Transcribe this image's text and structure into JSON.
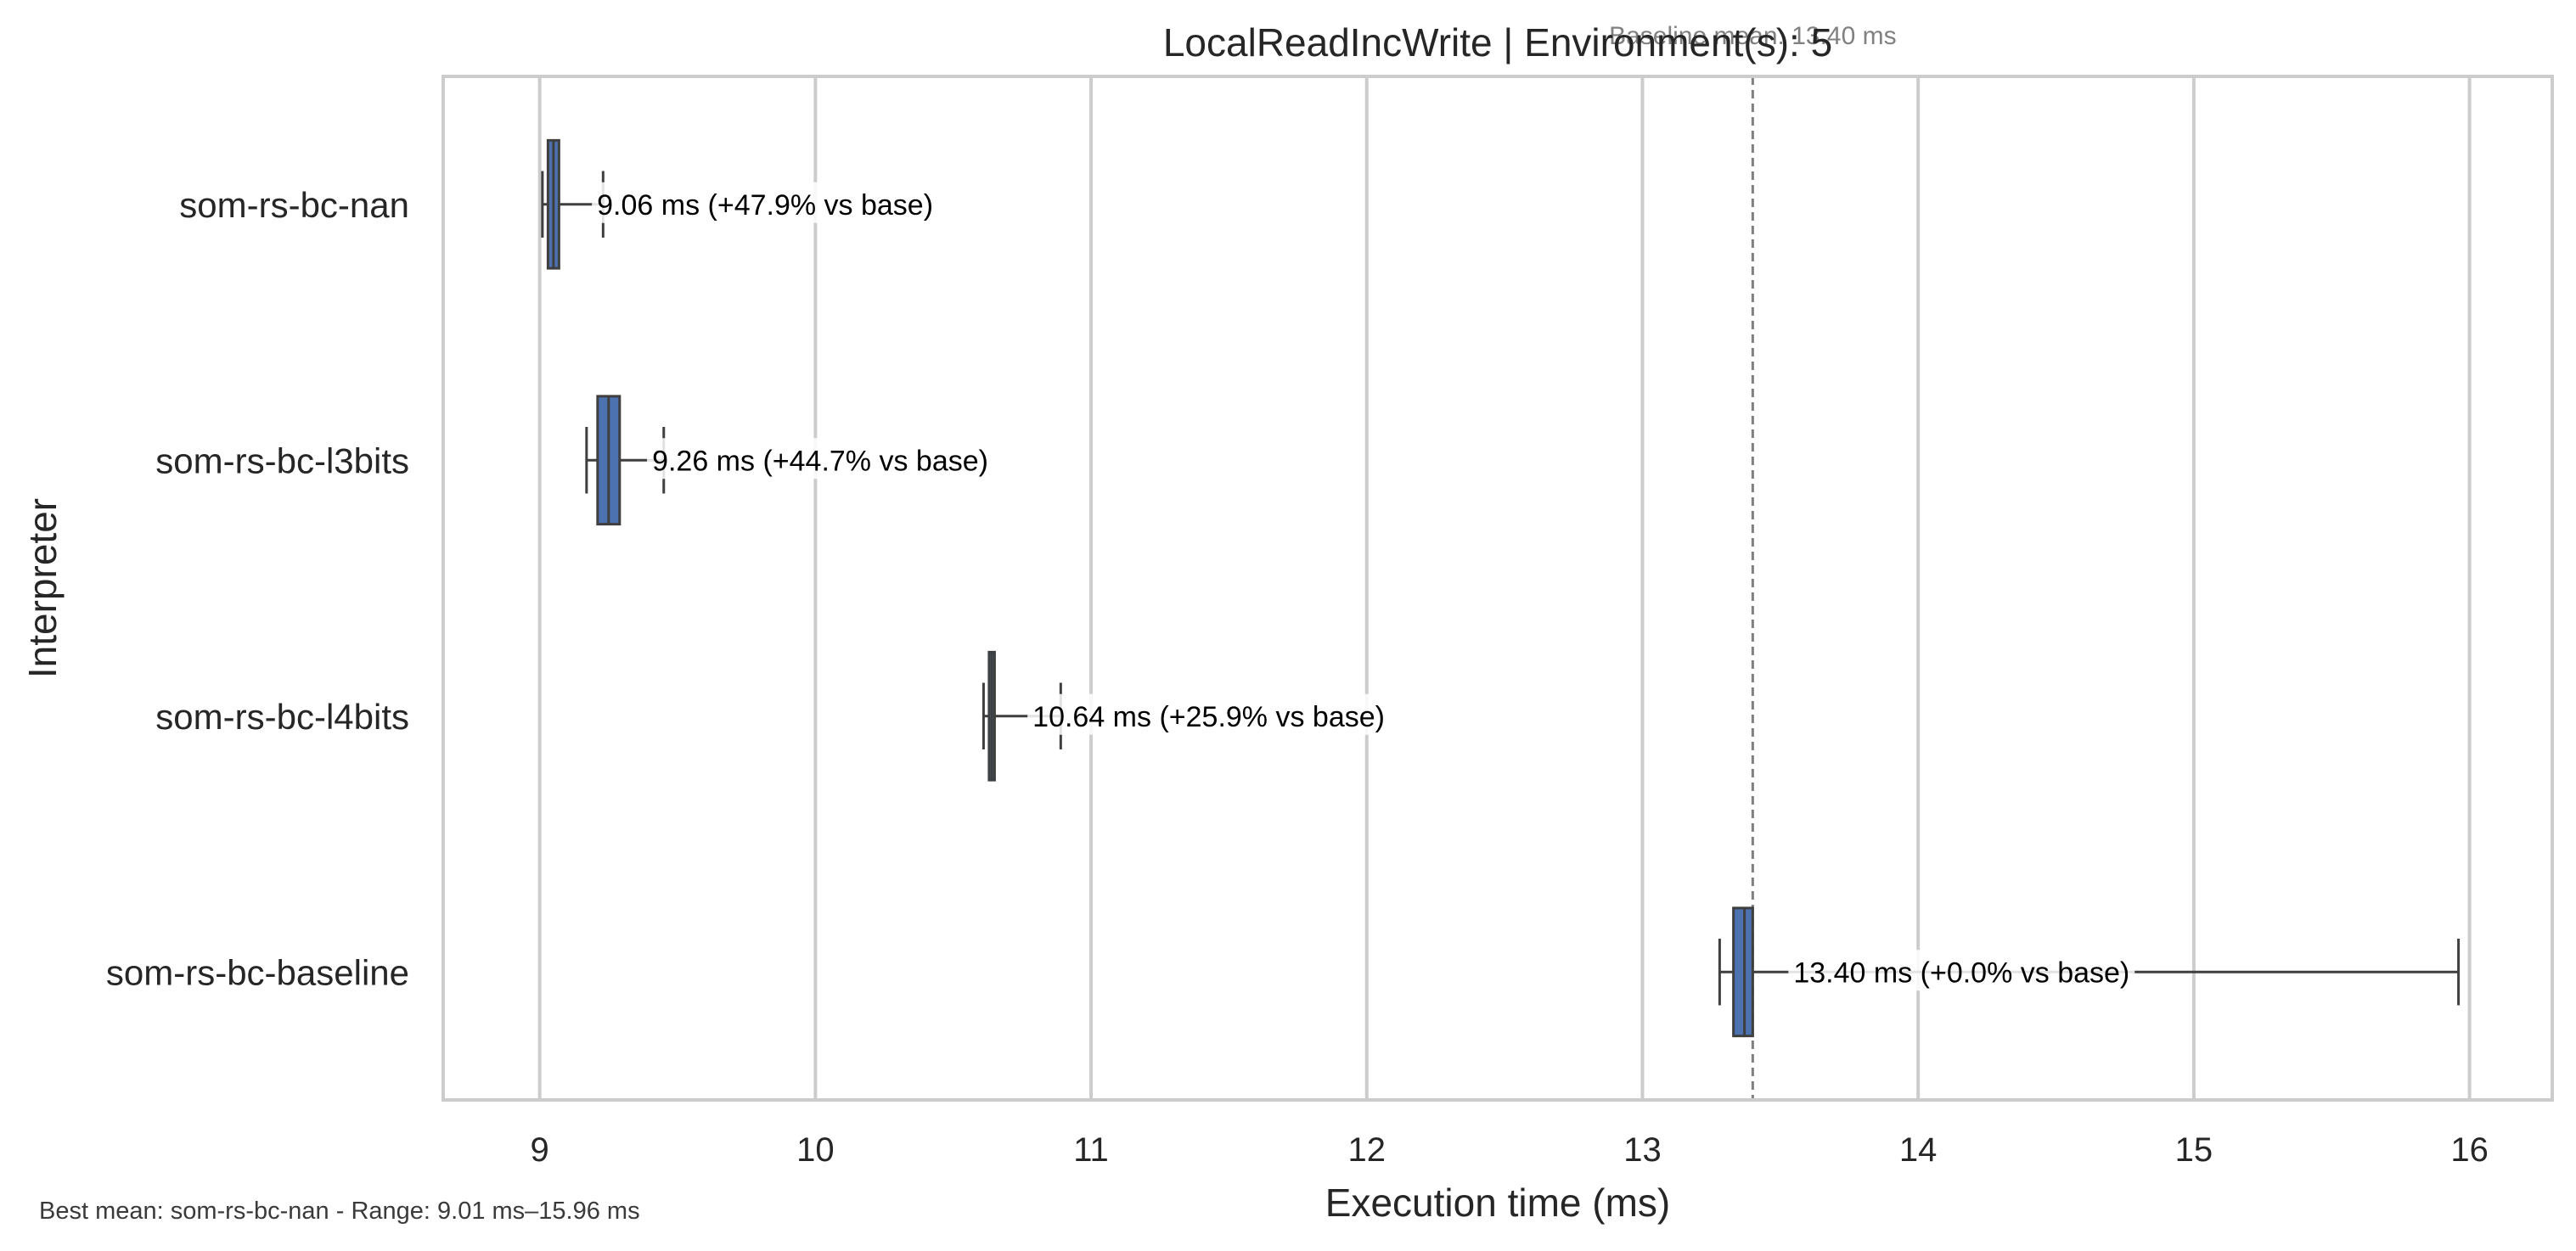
{
  "chart_data": {
    "type": "box",
    "orientation": "horizontal",
    "title": "LocalReadIncWrite | Environment(s): 5",
    "xlabel": "Execution time (ms)",
    "ylabel": "Interpreter",
    "xlim": [
      8.65,
      16.3
    ],
    "xticks": [
      9,
      10,
      11,
      12,
      13,
      14,
      15,
      16
    ],
    "grid": "vertical",
    "box_color": "#4c72b0",
    "categories": [
      "som-rs-bc-nan",
      "som-rs-bc-l3bits",
      "som-rs-bc-l4bits",
      "som-rs-bc-baseline"
    ],
    "series": [
      {
        "category": "som-rs-bc-nan",
        "whisker_low": 9.01,
        "q1": 9.03,
        "median": 9.05,
        "q3": 9.07,
        "whisker_high": 9.23,
        "mean": 9.06,
        "label": "9.06 ms  (+47.9% vs base)"
      },
      {
        "category": "som-rs-bc-l3bits",
        "whisker_low": 9.17,
        "q1": 9.21,
        "median": 9.25,
        "q3": 9.29,
        "whisker_high": 9.45,
        "mean": 9.26,
        "label": "9.26 ms  (+44.7% vs base)"
      },
      {
        "category": "som-rs-bc-l4bits",
        "whisker_low": 10.61,
        "q1": 10.63,
        "median": 10.64,
        "q3": 10.65,
        "whisker_high": 10.89,
        "mean": 10.64,
        "label": "10.64 ms  (+25.9% vs base)"
      },
      {
        "category": "som-rs-bc-baseline",
        "whisker_low": 13.28,
        "q1": 13.33,
        "median": 13.37,
        "q3": 13.4,
        "whisker_high": 15.96,
        "mean": 13.4,
        "label": "13.40 ms  (+0.0% vs base)"
      }
    ],
    "baseline": {
      "value": 13.4,
      "label": "Baseline mean: 13.40 ms"
    },
    "footnote": "Best mean: som-rs-bc-nan - Range: 9.01 ms–15.96 ms"
  }
}
